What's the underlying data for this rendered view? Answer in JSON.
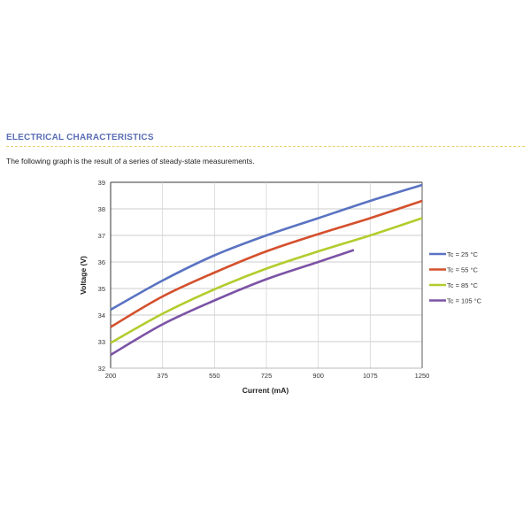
{
  "section": {
    "heading": "ELECTRICAL CHARACTERISTICS",
    "intro": "The following graph is the result of a series of steady-state measurements."
  },
  "chart_data": {
    "type": "line",
    "title": "",
    "xlabel": "Current (mA)",
    "ylabel": "Voltage (V)",
    "xlim": [
      200,
      1250
    ],
    "ylim": [
      32,
      39
    ],
    "xticks": [
      200,
      375,
      550,
      725,
      900,
      1075,
      1250
    ],
    "yticks": [
      32,
      33,
      34,
      35,
      36,
      37,
      38,
      39
    ],
    "grid": true,
    "legend_position": "right",
    "series": [
      {
        "name": "Tc = 25 °C",
        "color": "#5a73c2",
        "x": [
          200,
          375,
          550,
          725,
          900,
          1075,
          1250
        ],
        "y": [
          34.2,
          35.3,
          36.25,
          37.0,
          37.65,
          38.3,
          38.9
        ]
      },
      {
        "name": "Tc = 55 °C",
        "color": "#d4502c",
        "x": [
          200,
          375,
          550,
          725,
          900,
          1075,
          1250
        ],
        "y": [
          33.55,
          34.7,
          35.6,
          36.4,
          37.05,
          37.65,
          38.3
        ]
      },
      {
        "name": "Tc = 85 °C",
        "color": "#b3cc2d",
        "x": [
          200,
          375,
          550,
          725,
          900,
          1075,
          1250
        ],
        "y": [
          32.95,
          34.05,
          34.97,
          35.75,
          36.4,
          37.0,
          37.65
        ]
      },
      {
        "name": "Tc = 105 °C",
        "color": "#7b53a5",
        "x": [
          200,
          375,
          550,
          725,
          900,
          1020
        ],
        "y": [
          32.5,
          33.65,
          34.55,
          35.35,
          36.0,
          36.45
        ]
      }
    ]
  }
}
